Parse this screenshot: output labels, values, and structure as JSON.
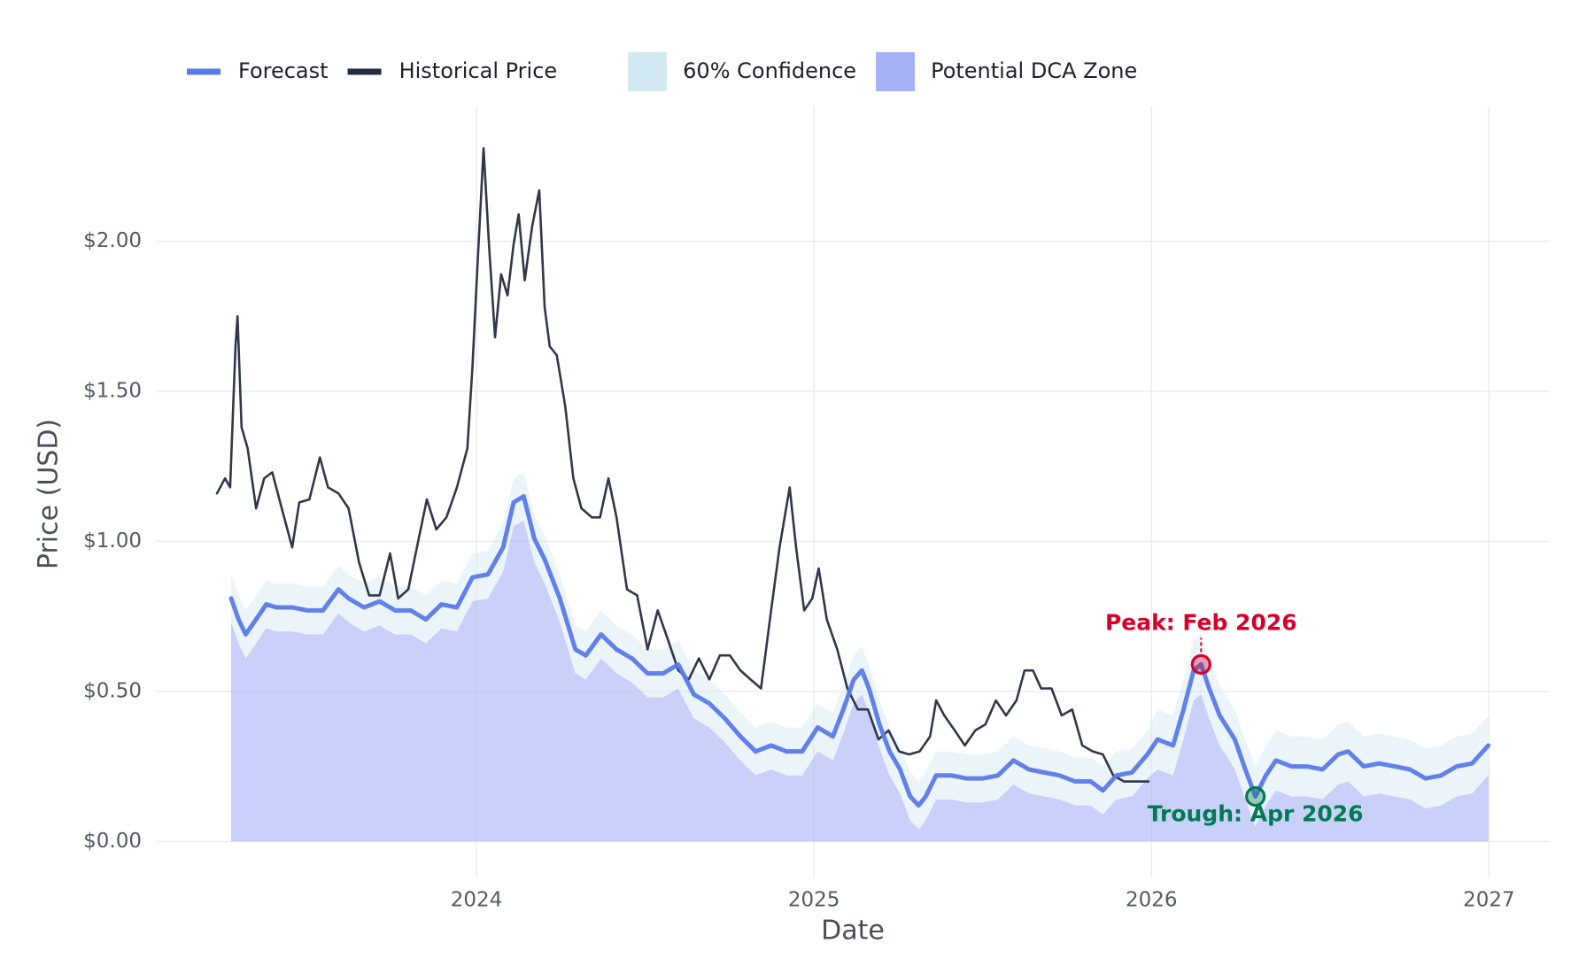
{
  "chart_data": {
    "type": "line",
    "xlabel": "Date",
    "ylabel": "Price (USD)",
    "xlim": [
      2023.05,
      2027.18
    ],
    "ylim": [
      -0.12,
      2.45
    ],
    "xticks": [
      2024,
      2025,
      2026,
      2027
    ],
    "yticks": [
      {
        "value": 0,
        "label": "$0.00"
      },
      {
        "value": 0.5,
        "label": "$0.50"
      },
      {
        "value": 1,
        "label": "$1.00"
      },
      {
        "value": 1.5,
        "label": "$1.50"
      },
      {
        "value": 2,
        "label": "$2.00"
      }
    ],
    "grid": true,
    "legend": "top",
    "series": [
      {
        "name": "Forecast",
        "type": "line",
        "color": "#5b79e8",
        "x": [
          2023.273,
          2023.295,
          2023.316,
          2023.347,
          2023.377,
          2023.408,
          2023.454,
          2023.499,
          2023.545,
          2023.591,
          2023.621,
          2023.667,
          2023.713,
          2023.759,
          2023.805,
          2023.85,
          2023.896,
          2023.942,
          2023.988,
          2024.034,
          2024.079,
          2024.11,
          2024.14,
          2024.171,
          2024.202,
          2024.247,
          2024.293,
          2024.324,
          2024.369,
          2024.415,
          2024.461,
          2024.507,
          2024.553,
          2024.598,
          2024.644,
          2024.69,
          2024.736,
          2024.782,
          2024.827,
          2024.873,
          2024.919,
          2024.965,
          2025.011,
          2025.056,
          2025.087,
          2025.118,
          2025.142,
          2025.163,
          2025.194,
          2025.224,
          2025.255,
          2025.285,
          2025.31,
          2025.331,
          2025.362,
          2025.408,
          2025.453,
          2025.499,
          2025.545,
          2025.591,
          2025.637,
          2025.682,
          2025.728,
          2025.774,
          2025.82,
          2025.856,
          2025.896,
          2025.942,
          2025.988,
          2026.018,
          2026.064,
          2026.095,
          2026.125,
          2026.147,
          2026.171,
          2026.202,
          2026.247,
          2026.278,
          2026.308,
          2026.339,
          2026.369,
          2026.415,
          2026.461,
          2026.507,
          2026.553,
          2026.583,
          2026.629,
          2026.675,
          2026.721,
          2026.766,
          2026.812,
          2026.858,
          2026.904,
          2026.95,
          2026.998
        ],
        "values": [
          0.81,
          0.74,
          0.69,
          0.74,
          0.79,
          0.78,
          0.78,
          0.77,
          0.77,
          0.84,
          0.81,
          0.78,
          0.8,
          0.77,
          0.77,
          0.74,
          0.79,
          0.78,
          0.88,
          0.89,
          0.98,
          1.13,
          1.15,
          1.01,
          0.94,
          0.81,
          0.64,
          0.62,
          0.69,
          0.64,
          0.61,
          0.56,
          0.56,
          0.59,
          0.49,
          0.46,
          0.41,
          0.35,
          0.3,
          0.32,
          0.3,
          0.3,
          0.38,
          0.35,
          0.44,
          0.54,
          0.57,
          0.51,
          0.39,
          0.3,
          0.24,
          0.15,
          0.12,
          0.15,
          0.22,
          0.22,
          0.21,
          0.21,
          0.22,
          0.27,
          0.24,
          0.23,
          0.22,
          0.2,
          0.2,
          0.17,
          0.22,
          0.23,
          0.29,
          0.34,
          0.32,
          0.44,
          0.57,
          0.59,
          0.51,
          0.42,
          0.34,
          0.24,
          0.15,
          0.22,
          0.27,
          0.25,
          0.25,
          0.24,
          0.29,
          0.3,
          0.25,
          0.26,
          0.25,
          0.24,
          0.21,
          0.22,
          0.25,
          0.26,
          0.32
        ]
      },
      {
        "name": "Historical Price",
        "type": "line",
        "color": "#272b40",
        "x": [
          2023.231,
          2023.255,
          2023.27,
          2023.286,
          2023.292,
          2023.304,
          2023.322,
          2023.347,
          2023.371,
          2023.395,
          2023.423,
          2023.454,
          2023.475,
          2023.505,
          2023.536,
          2023.56,
          2023.591,
          2023.621,
          2023.652,
          2023.682,
          2023.713,
          2023.744,
          2023.768,
          2023.798,
          2023.829,
          2023.853,
          2023.881,
          2023.911,
          2023.942,
          2023.973,
          2023.988,
          2024.003,
          2024.021,
          2024.037,
          2024.055,
          2024.073,
          2024.092,
          2024.11,
          2024.125,
          2024.143,
          2024.165,
          2024.186,
          2024.202,
          2024.217,
          2024.238,
          2024.263,
          2024.287,
          2024.311,
          2024.342,
          2024.366,
          2024.391,
          2024.415,
          2024.446,
          2024.476,
          2024.507,
          2024.537,
          2024.568,
          2024.598,
          2024.629,
          2024.659,
          2024.69,
          2024.721,
          2024.751,
          2024.782,
          2024.812,
          2024.843,
          2024.873,
          2024.898,
          2024.928,
          2024.947,
          2024.971,
          2024.995,
          2025.014,
          2025.038,
          2025.069,
          2025.099,
          2025.13,
          2025.16,
          2025.191,
          2025.221,
          2025.252,
          2025.282,
          2025.313,
          2025.344,
          2025.362,
          2025.386,
          2025.417,
          2025.447,
          2025.478,
          2025.508,
          2025.539,
          2025.569,
          2025.6,
          2025.624,
          2025.649,
          2025.673,
          2025.704,
          2025.734,
          2025.765,
          2025.795,
          2025.826,
          2025.856,
          2025.887,
          2025.918,
          2025.948,
          2025.991
        ],
        "values": [
          1.16,
          1.21,
          1.18,
          1.65,
          1.75,
          1.38,
          1.31,
          1.11,
          1.21,
          1.23,
          1.11,
          0.98,
          1.13,
          1.14,
          1.28,
          1.18,
          1.16,
          1.11,
          0.93,
          0.82,
          0.82,
          0.96,
          0.81,
          0.84,
          1.01,
          1.14,
          1.04,
          1.08,
          1.18,
          1.31,
          1.58,
          1.92,
          2.31,
          1.99,
          1.68,
          1.89,
          1.82,
          1.99,
          2.09,
          1.87,
          2.05,
          2.17,
          1.78,
          1.65,
          1.62,
          1.45,
          1.21,
          1.11,
          1.08,
          1.08,
          1.21,
          1.08,
          0.84,
          0.82,
          0.64,
          0.77,
          0.67,
          0.57,
          0.54,
          0.61,
          0.54,
          0.62,
          0.62,
          0.57,
          0.54,
          0.51,
          0.77,
          0.98,
          1.18,
          0.98,
          0.77,
          0.81,
          0.91,
          0.74,
          0.64,
          0.51,
          0.44,
          0.44,
          0.34,
          0.37,
          0.3,
          0.29,
          0.3,
          0.35,
          0.47,
          0.42,
          0.37,
          0.32,
          0.37,
          0.39,
          0.47,
          0.42,
          0.47,
          0.57,
          0.57,
          0.51,
          0.51,
          0.42,
          0.44,
          0.32,
          0.3,
          0.29,
          0.22,
          0.2,
          0.2,
          0.2
        ]
      },
      {
        "name": "60% Confidence",
        "type": "band",
        "color": "#d3e9f1",
        "upper": [
          0.89,
          0.82,
          0.77,
          0.82,
          0.87,
          0.86,
          0.86,
          0.85,
          0.85,
          0.92,
          0.89,
          0.86,
          0.88,
          0.85,
          0.85,
          0.82,
          0.87,
          0.86,
          0.96,
          0.97,
          1.06,
          1.21,
          1.23,
          1.09,
          1.02,
          0.89,
          0.72,
          0.7,
          0.77,
          0.72,
          0.69,
          0.64,
          0.64,
          0.67,
          0.57,
          0.54,
          0.49,
          0.43,
          0.38,
          0.4,
          0.38,
          0.38,
          0.46,
          0.43,
          0.52,
          0.62,
          0.65,
          0.59,
          0.47,
          0.38,
          0.32,
          0.23,
          0.2,
          0.23,
          0.3,
          0.3,
          0.29,
          0.29,
          0.3,
          0.35,
          0.32,
          0.31,
          0.3,
          0.28,
          0.28,
          0.25,
          0.3,
          0.31,
          0.37,
          0.44,
          0.42,
          0.54,
          0.67,
          0.69,
          0.61,
          0.52,
          0.44,
          0.34,
          0.25,
          0.32,
          0.37,
          0.35,
          0.35,
          0.34,
          0.39,
          0.4,
          0.35,
          0.36,
          0.35,
          0.34,
          0.31,
          0.32,
          0.35,
          0.36,
          0.42
        ],
        "lower": [
          0.73,
          0.66,
          0.61,
          0.66,
          0.71,
          0.7,
          0.7,
          0.69,
          0.69,
          0.76,
          0.73,
          0.7,
          0.72,
          0.69,
          0.69,
          0.66,
          0.71,
          0.7,
          0.8,
          0.81,
          0.9,
          1.05,
          1.07,
          0.93,
          0.86,
          0.73,
          0.56,
          0.54,
          0.61,
          0.56,
          0.53,
          0.48,
          0.48,
          0.51,
          0.41,
          0.38,
          0.33,
          0.27,
          0.22,
          0.24,
          0.22,
          0.22,
          0.3,
          0.27,
          0.36,
          0.46,
          0.49,
          0.43,
          0.31,
          0.22,
          0.16,
          0.07,
          0.04,
          0.07,
          0.14,
          0.14,
          0.13,
          0.13,
          0.14,
          0.19,
          0.16,
          0.15,
          0.14,
          0.12,
          0.12,
          0.09,
          0.14,
          0.15,
          0.21,
          0.24,
          0.22,
          0.34,
          0.47,
          0.49,
          0.41,
          0.32,
          0.24,
          0.14,
          0.05,
          0.12,
          0.17,
          0.15,
          0.15,
          0.14,
          0.19,
          0.2,
          0.15,
          0.16,
          0.15,
          0.14,
          0.11,
          0.12,
          0.15,
          0.16,
          0.22
        ]
      },
      {
        "name": "Potential DCA Zone",
        "type": "area",
        "color": "#a5b0f5"
      }
    ],
    "annotations": [
      {
        "text": "Peak: Feb 2026",
        "x": 2026.147,
        "y": 0.59,
        "color": "#d6002a",
        "position": "above"
      },
      {
        "text": "Trough: Apr 2026",
        "x": 2026.308,
        "y": 0.15,
        "color": "#007a52",
        "position": "below"
      }
    ]
  }
}
